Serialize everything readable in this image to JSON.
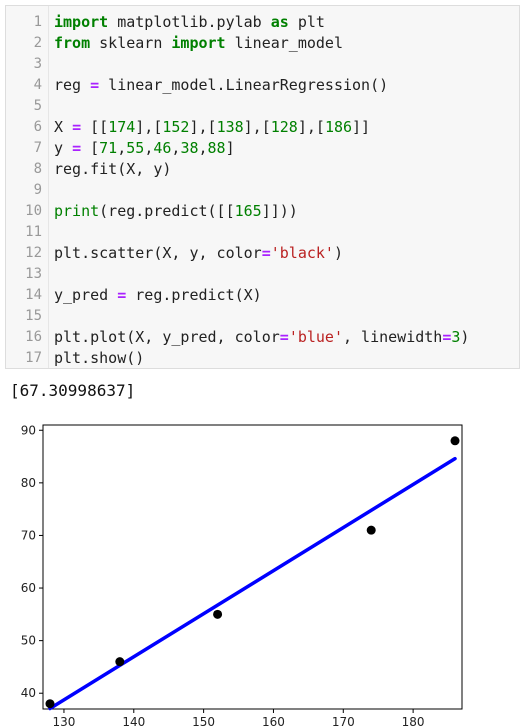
{
  "code_lines": [
    {
      "num": "1",
      "html": "<span class=\"kw\">import</span> matplotlib.pylab <span class=\"kw\">as</span> plt"
    },
    {
      "num": "2",
      "html": "<span class=\"kw\">from</span> sklearn <span class=\"kw\">import</span> linear_model"
    },
    {
      "num": "3",
      "html": ""
    },
    {
      "num": "4",
      "html": "reg <span class=\"op\">=</span> linear_model.LinearRegression()"
    },
    {
      "num": "5",
      "html": ""
    },
    {
      "num": "6",
      "html": "X <span class=\"op\">=</span> [[<span class=\"num\">174</span>],[<span class=\"num\">152</span>],[<span class=\"num\">138</span>],[<span class=\"num\">128</span>],[<span class=\"num\">186</span>]]"
    },
    {
      "num": "7",
      "html": "y <span class=\"op\">=</span> [<span class=\"num\">71</span>,<span class=\"num\">55</span>,<span class=\"num\">46</span>,<span class=\"num\">38</span>,<span class=\"num\">88</span>]"
    },
    {
      "num": "8",
      "html": "reg.fit(X, y)"
    },
    {
      "num": "9",
      "html": ""
    },
    {
      "num": "10",
      "html": "<span class=\"builtin\">print</span>(reg.predict([[<span class=\"num\">165</span>]]))"
    },
    {
      "num": "11",
      "html": ""
    },
    {
      "num": "12",
      "html": "plt.scatter(X, y, color<span class=\"op\">=</span><span class=\"str\">'black'</span>)"
    },
    {
      "num": "13",
      "html": ""
    },
    {
      "num": "14",
      "html": "y_pred <span class=\"op\">=</span> reg.predict(X)"
    },
    {
      "num": "15",
      "html": ""
    },
    {
      "num": "16",
      "html": "plt.plot(X, y_pred, color<span class=\"op\">=</span><span class=\"str\">'blue'</span>, linewidth<span class=\"op\">=</span><span class=\"num\">3</span>)"
    },
    {
      "num": "17",
      "html": "plt.show()"
    }
  ],
  "output": {
    "text": "[67.30998637]"
  },
  "chart_data": {
    "type": "scatter",
    "title": "",
    "xlabel": "",
    "ylabel": "",
    "xlim": [
      127,
      187
    ],
    "ylim": [
      37,
      91
    ],
    "xticks": [
      130,
      140,
      150,
      160,
      170,
      180
    ],
    "yticks": [
      40,
      50,
      60,
      70,
      80,
      90
    ],
    "grid": false,
    "series": [
      {
        "kind": "scatter",
        "color": "#000000",
        "x": [
          174,
          152,
          138,
          128,
          186
        ],
        "y": [
          71,
          55,
          46,
          38,
          88
        ]
      },
      {
        "kind": "line",
        "color": "#0000ff",
        "x": [
          128,
          186
        ],
        "y": [
          37.1,
          84.6
        ]
      }
    ]
  }
}
